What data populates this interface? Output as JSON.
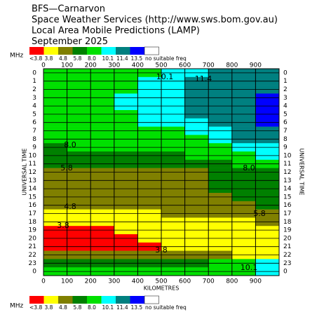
{
  "chart_data": {
    "type": "heatmap",
    "title_lines": [
      "BFS—Carnarvon",
      "Space Weather Services (http://www.sws.bom.gov.au)",
      "Local Area Mobile Predictions (LAMP)",
      "September 2025"
    ],
    "xlabel": "KILOMETRES",
    "ylabel": "UNIVERSAL TIME",
    "xlim": [
      0,
      1000
    ],
    "xticks": [
      0,
      100,
      200,
      300,
      400,
      500,
      600,
      700,
      800,
      900
    ],
    "x": [
      50,
      150,
      250,
      350,
      450,
      550,
      650,
      750,
      850,
      950
    ],
    "categories": [
      "0",
      "1",
      "2",
      "3",
      "4",
      "5",
      "6",
      "7",
      "8",
      "9",
      "10",
      "11",
      "12",
      "13",
      "14",
      "15",
      "16",
      "17",
      "18",
      "19",
      "20",
      "21",
      "22",
      "23",
      "0"
    ],
    "legend": {
      "unit": "MHz",
      "entries": [
        {
          "label": "<3.8",
          "color": "#ff0000"
        },
        {
          "label": "3.8",
          "value": 3.8,
          "color": "#ffff00"
        },
        {
          "label": "4.8",
          "value": 4.8,
          "color": "#808000"
        },
        {
          "label": "5.8",
          "value": 5.8,
          "color": "#008000"
        },
        {
          "label": "8.0",
          "value": 8,
          "color": "#00e000"
        },
        {
          "label": "10.1",
          "value": 10.1,
          "color": "#00ffff"
        },
        {
          "label": "11.4",
          "value": 11.4,
          "color": "#008080"
        },
        {
          "label": "13.5",
          "value": 13.5,
          "color": "#0000ff"
        },
        {
          "label": "no suitable freq",
          "color": "#ffffff"
        }
      ]
    },
    "contour_labels": [
      "10.1",
      "11.4",
      "8.0",
      "8.0",
      "5.8",
      "4.8",
      "5.8",
      "3.8",
      "3.8",
      "10.1"
    ],
    "z": [
      [
        9,
        9,
        9,
        9,
        9,
        10.8,
        10.8,
        12.5,
        12.5,
        12.5
      ],
      [
        9,
        9,
        9,
        9,
        10.8,
        10.8,
        12.5,
        12.5,
        12.5,
        12.5
      ],
      [
        9,
        9,
        9,
        9,
        10.8,
        10.8,
        12.5,
        12.5,
        12.5,
        12.5
      ],
      [
        9,
        9,
        9,
        10.8,
        10.8,
        10.8,
        12.5,
        12.5,
        12.5,
        14
      ],
      [
        9,
        9,
        9,
        10.8,
        10.8,
        10.8,
        12.5,
        12.5,
        12.5,
        14
      ],
      [
        9,
        9,
        9,
        9,
        10.8,
        10.8,
        12.5,
        12.5,
        12.5,
        14
      ],
      [
        9,
        9,
        9,
        9,
        10.8,
        10.8,
        10.8,
        12.5,
        12.5,
        14
      ],
      [
        9,
        9,
        9,
        9,
        9,
        9,
        10.8,
        10.8,
        12.5,
        12.5
      ],
      [
        9,
        9,
        9,
        9,
        9,
        9,
        9,
        10.8,
        12.5,
        12.5
      ],
      [
        7,
        9,
        9,
        9,
        9,
        9,
        9,
        9,
        10.8,
        10.8
      ],
      [
        7,
        7,
        7,
        7,
        7,
        7,
        9,
        9,
        9,
        10.8
      ],
      [
        7,
        7,
        7,
        7,
        7,
        7,
        7,
        7,
        9,
        9
      ],
      [
        5.2,
        5.2,
        5.2,
        5.2,
        5.2,
        5.2,
        5.2,
        7,
        7,
        7
      ],
      [
        5.2,
        5.2,
        5.2,
        5.2,
        5.2,
        5.2,
        5.2,
        7,
        7,
        7
      ],
      [
        5.2,
        5.2,
        5.2,
        5.2,
        5.2,
        5.2,
        5.2,
        7,
        7,
        7
      ],
      [
        5.2,
        5.2,
        5.2,
        5.2,
        5.2,
        5.2,
        5.2,
        5.2,
        7,
        7
      ],
      [
        5.2,
        5.2,
        5.2,
        5.2,
        5.2,
        5.2,
        5.2,
        5.2,
        5.2,
        7
      ],
      [
        4.2,
        4.2,
        4.2,
        4.2,
        4.2,
        5.2,
        5.2,
        5.2,
        5.2,
        5.2
      ],
      [
        4.2,
        4.2,
        4.2,
        4.2,
        4.2,
        4.2,
        4.2,
        4.2,
        4.2,
        5.2
      ],
      [
        3,
        3,
        3,
        4.2,
        4.2,
        4.2,
        4.2,
        4.2,
        4.2,
        4.2
      ],
      [
        3,
        3,
        3,
        3,
        4.2,
        4.2,
        4.2,
        4.2,
        4.2,
        4.2
      ],
      [
        3,
        3,
        3,
        3,
        3,
        4.2,
        4.2,
        4.2,
        4.2,
        4.2
      ],
      [
        5.2,
        5.2,
        5.2,
        5.2,
        5.2,
        5.2,
        5.2,
        5.2,
        4.2,
        4.2
      ],
      [
        7,
        7,
        7,
        7,
        7,
        7,
        7,
        9,
        9,
        10.8
      ],
      [
        9,
        9,
        9,
        9,
        9,
        9,
        9,
        9,
        9,
        10.8
      ]
    ]
  }
}
